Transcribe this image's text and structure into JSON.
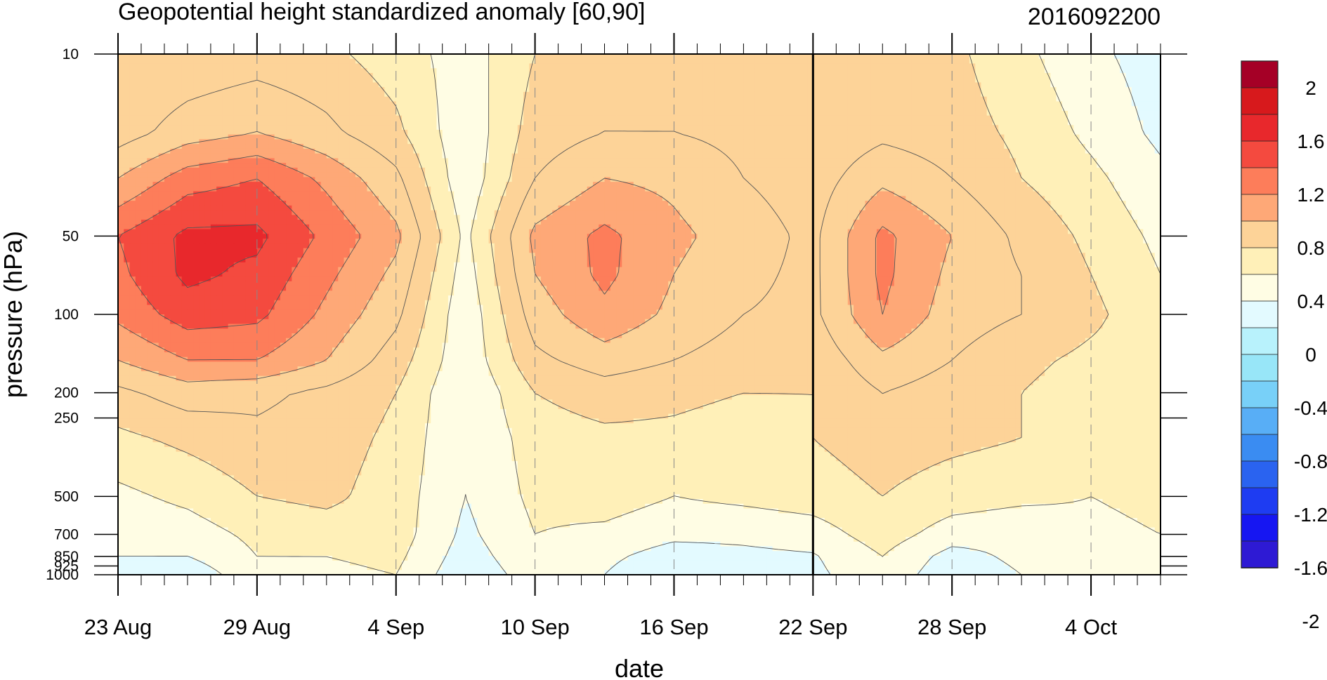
{
  "chart_data": {
    "type": "heatmap",
    "subtype": "filled-contour",
    "title": "Geopotential height standardized anomaly [60,90]",
    "date_label": "2016092200",
    "xlabel": "date",
    "ylabel": "pressure (hPa)",
    "x_start": "23 Aug",
    "x_end": "8 Oct",
    "x_ticks": [
      "23 Aug",
      "29 Aug",
      "4 Sep",
      "10 Sep",
      "16 Sep",
      "22 Sep",
      "28 Sep",
      "4 Oct"
    ],
    "x_tick_days": [
      0,
      6,
      12,
      18,
      24,
      30,
      36,
      42
    ],
    "x_max_day": 45,
    "current_day": 30,
    "y_scale": "log",
    "ylim": [
      1000,
      10
    ],
    "y_ticks": [
      10,
      50,
      100,
      200,
      250,
      500,
      700,
      850,
      925,
      1000
    ],
    "colorbar": {
      "labels": [
        "2",
        "1.6",
        "1.2",
        "0.8",
        "0.4",
        "0",
        "-0.4",
        "-0.8",
        "-1.2",
        "-1.6",
        "-2"
      ],
      "colors": [
        "#a50026",
        "#d7191c",
        "#e8282c",
        "#f44a3f",
        "#fd7d5a",
        "#fea877",
        "#fdd398",
        "#fff0b8",
        "#fffde4",
        "#e3faff",
        "#b8f2fc",
        "#98e6f8",
        "#78d0f8",
        "#58aef6",
        "#3a8cf2",
        "#2a63f0",
        "#1e3cf2",
        "#1616f2",
        "#2e1ad4"
      ]
    },
    "contour_levels": [
      -0.2,
      0,
      0.2,
      0.4,
      0.6,
      0.8,
      1.0,
      1.2,
      1.4
    ],
    "anomaly_field": {
      "days": [
        0,
        3,
        6,
        9,
        12,
        15,
        18,
        21,
        24,
        27,
        30,
        33,
        36,
        39,
        42,
        45
      ],
      "pressures": [
        10,
        20,
        30,
        50,
        70,
        100,
        150,
        200,
        300,
        500,
        700,
        850,
        1000
      ],
      "values": [
        [
          0.4,
          0.45,
          0.5,
          0.45,
          0.3,
          0.1,
          0.4,
          0.5,
          0.5,
          0.5,
          0.45,
          0.5,
          0.45,
          0.25,
          0.05,
          -0.1
        ],
        [
          0.5,
          0.7,
          0.8,
          0.65,
          0.45,
          0.05,
          0.5,
          0.6,
          0.6,
          0.55,
          0.45,
          0.55,
          0.5,
          0.35,
          0.15,
          -0.05
        ],
        [
          0.8,
          1.1,
          1.2,
          0.95,
          0.65,
          0.05,
          0.6,
          0.8,
          0.75,
          0.6,
          0.5,
          0.75,
          0.6,
          0.4,
          0.25,
          0.05
        ],
        [
          1.2,
          1.45,
          1.45,
          1.15,
          0.85,
          0.15,
          0.85,
          1.05,
          0.85,
          0.7,
          0.55,
          1.05,
          0.8,
          0.55,
          0.35,
          0.15
        ],
        [
          1.15,
          1.45,
          1.35,
          1.05,
          0.75,
          0.1,
          0.8,
          1.05,
          0.8,
          0.65,
          0.55,
          1.05,
          0.75,
          0.6,
          0.4,
          0.2
        ],
        [
          1.05,
          1.3,
          1.25,
          0.95,
          0.65,
          0.05,
          0.7,
          0.95,
          0.75,
          0.6,
          0.55,
          1.0,
          0.7,
          0.6,
          0.45,
          0.25
        ],
        [
          0.8,
          1.0,
          1.0,
          0.8,
          0.5,
          0.05,
          0.55,
          0.7,
          0.6,
          0.5,
          0.45,
          0.75,
          0.6,
          0.45,
          0.35,
          0.3
        ],
        [
          0.55,
          0.7,
          0.65,
          0.55,
          0.4,
          0.0,
          0.4,
          0.5,
          0.45,
          0.4,
          0.4,
          0.6,
          0.5,
          0.4,
          0.3,
          0.35
        ],
        [
          0.35,
          0.45,
          0.55,
          0.5,
          0.35,
          0.0,
          0.3,
          0.35,
          0.35,
          0.3,
          0.4,
          0.5,
          0.45,
          0.4,
          0.3,
          0.35
        ],
        [
          0.15,
          0.25,
          0.4,
          0.45,
          0.3,
          0.0,
          0.25,
          0.3,
          0.2,
          0.25,
          0.3,
          0.4,
          0.3,
          0.25,
          0.2,
          0.25
        ],
        [
          0.05,
          0.1,
          0.25,
          0.3,
          0.3,
          -0.05,
          0.2,
          0.15,
          0.05,
          0.05,
          0.1,
          0.3,
          0.1,
          0.05,
          0.15,
          0.2
        ],
        [
          0.0,
          0.0,
          0.2,
          0.2,
          0.25,
          -0.1,
          0.15,
          0.05,
          -0.1,
          -0.05,
          -0.02,
          0.2,
          -0.08,
          0.05,
          0.1,
          0.15
        ],
        [
          -0.1,
          -0.15,
          0.15,
          0.15,
          0.2,
          -0.15,
          0.1,
          0.0,
          -0.2,
          -0.1,
          -0.05,
          0.15,
          -0.15,
          0.0,
          0.1,
          0.1
        ]
      ]
    }
  }
}
